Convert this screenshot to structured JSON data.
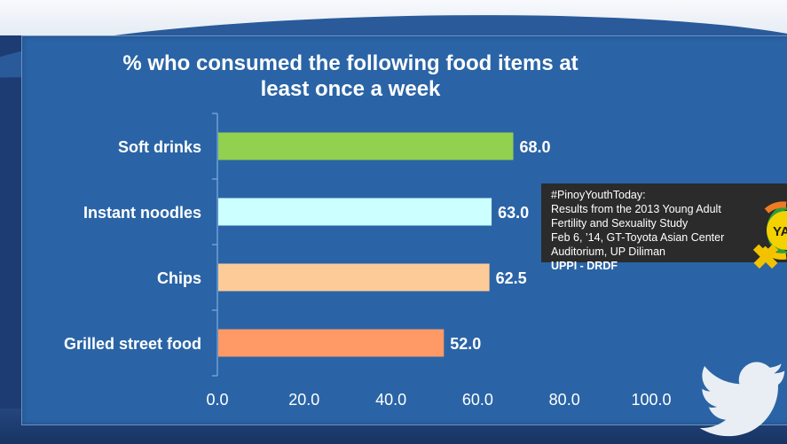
{
  "chart_data": {
    "type": "bar",
    "orientation": "horizontal",
    "title": "% who consumed the following food items at\nleast once a week",
    "categories": [
      "Soft drinks",
      "Instant noodles",
      "Chips",
      "Grilled street food"
    ],
    "values": [
      68.0,
      63.0,
      62.5,
      52.0
    ],
    "data_labels": [
      "68.0",
      "63.0",
      "62.5",
      "52.0"
    ],
    "colors": [
      "#92d050",
      "#ccffff",
      "#fdcb98",
      "#ff9966"
    ],
    "xlim": [
      0,
      100
    ],
    "x_ticks": [
      0,
      20,
      40,
      60,
      80,
      100
    ],
    "x_tick_labels": [
      "0.0",
      "20.0",
      "40.0",
      "60.0",
      "80.0",
      "100.0"
    ],
    "grid": false,
    "legend": "none"
  },
  "event": {
    "line1": "#PinoyYouthToday:",
    "line2": "Results from the 2013 Young Adult",
    "line3": "Fertility and Sexuality Study",
    "line4": "Feb 6, ’14, GT-Toyota Asian Center",
    "line5": "Auditorium, UP Diliman",
    "org": "UPPI - DRDF"
  },
  "logo": {
    "text": "YAFS",
    "colors": {
      "ring_green": "#2e9e3a",
      "ring_orange": "#f07b22",
      "ring_yellow": "#f7c600",
      "cross": "#f2c200"
    }
  },
  "icons": {
    "bird": "twitter-bird-icon"
  }
}
